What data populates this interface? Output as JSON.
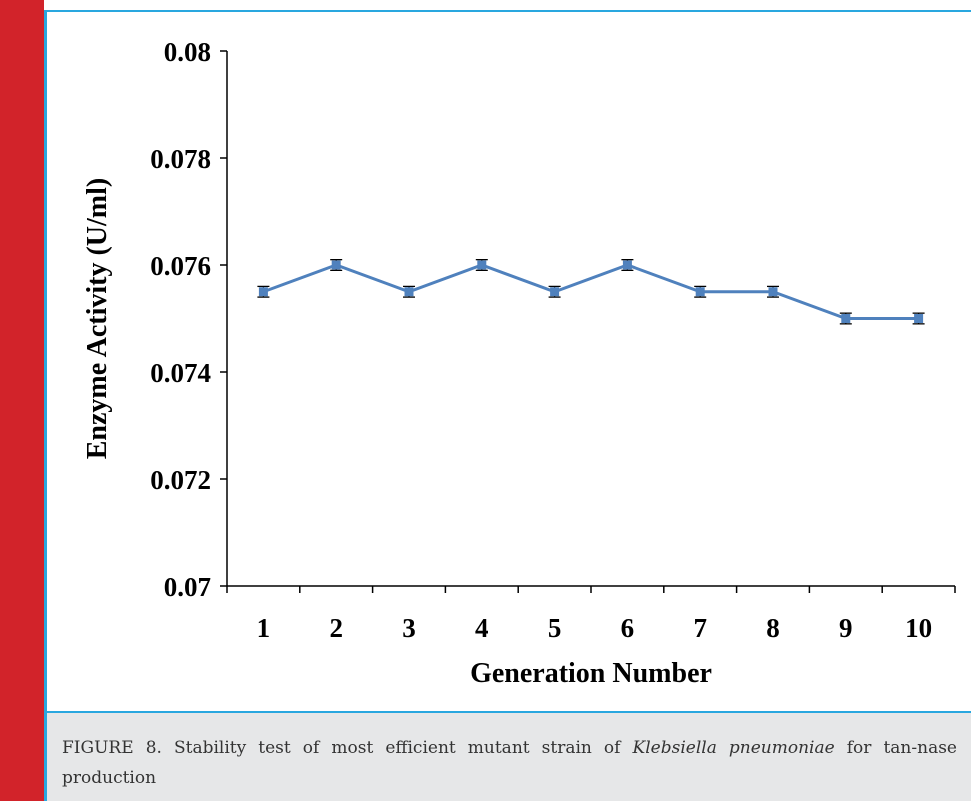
{
  "chart_data": {
    "type": "line",
    "xlabel": "Generation Number",
    "ylabel": "Enzyme Activity (U/ml)",
    "categories": [
      "1",
      "2",
      "3",
      "4",
      "5",
      "6",
      "7",
      "8",
      "9",
      "10"
    ],
    "series": [
      {
        "values": [
          0.0755,
          0.076,
          0.0755,
          0.076,
          0.0755,
          0.076,
          0.0755,
          0.0755,
          0.075,
          0.075
        ],
        "error": [
          0.0001,
          0.0001,
          0.0001,
          0.0001,
          0.0001,
          0.0001,
          0.0001,
          0.0001,
          0.0001,
          0.0001
        ],
        "color": "#4f81bd"
      }
    ],
    "ylim": [
      0.07,
      0.08
    ],
    "y_ticks": [
      0.07,
      0.072,
      0.074,
      0.076,
      0.078,
      0.08
    ],
    "y_tick_labels": [
      "0.07",
      "0.072",
      "0.074",
      "0.076",
      "0.078",
      "0.08"
    ],
    "grid": false,
    "legend": "none"
  },
  "caption": {
    "prefix": "FIGURE 8. Stability test of most efficient mutant strain of ",
    "species": "Klebsiella pneumoniae",
    "suffix": " for tan-nase production"
  },
  "colors": {
    "accent_red": "#d2232a",
    "border_blue": "#29a7df",
    "caption_bg": "#e6e7e8",
    "series_line": "#4f81bd"
  }
}
